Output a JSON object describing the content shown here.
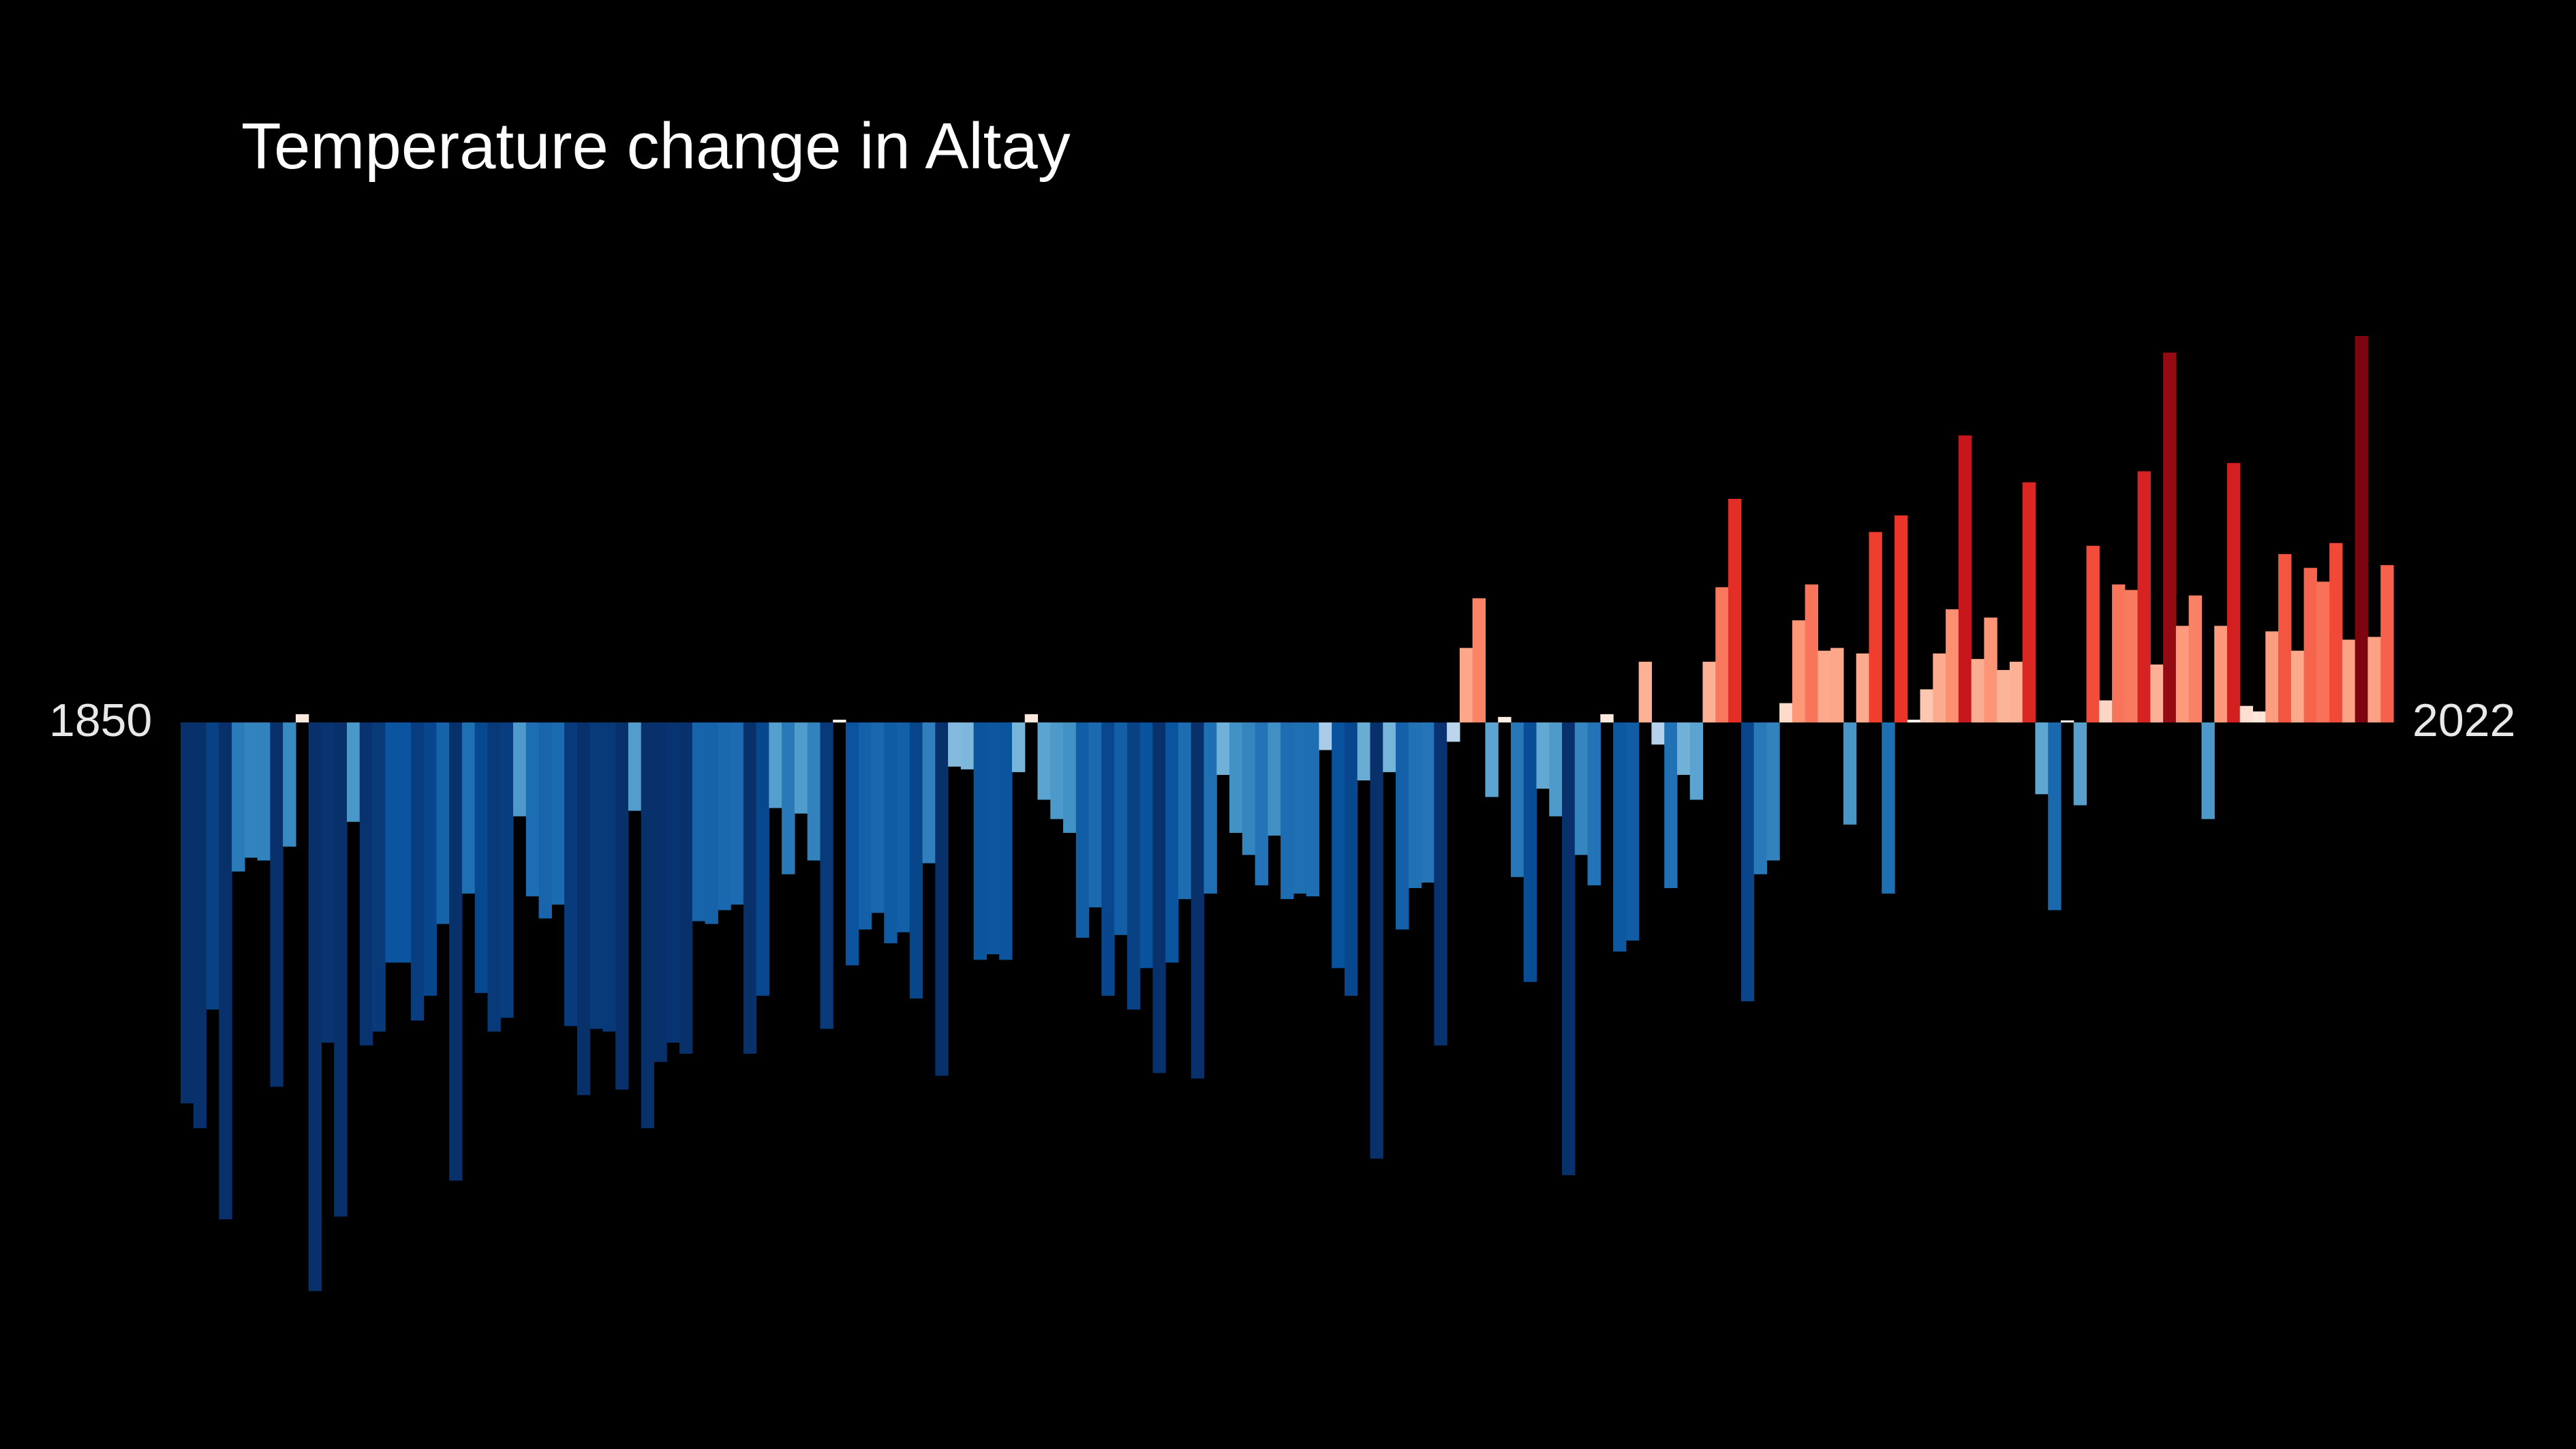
{
  "chart_data": {
    "type": "bar",
    "title": "Temperature change in Altay",
    "start_year": "1850",
    "end_year": "2022",
    "x": [
      1850,
      1851,
      1852,
      1853,
      1854,
      1855,
      1856,
      1857,
      1858,
      1859,
      1860,
      1861,
      1862,
      1863,
      1864,
      1865,
      1866,
      1867,
      1868,
      1869,
      1870,
      1871,
      1872,
      1873,
      1874,
      1875,
      1876,
      1877,
      1878,
      1879,
      1880,
      1881,
      1882,
      1883,
      1884,
      1885,
      1886,
      1887,
      1888,
      1889,
      1890,
      1891,
      1892,
      1893,
      1894,
      1895,
      1896,
      1897,
      1898,
      1899,
      1900,
      1901,
      1902,
      1903,
      1904,
      1905,
      1906,
      1907,
      1908,
      1909,
      1910,
      1911,
      1912,
      1913,
      1914,
      1915,
      1916,
      1917,
      1918,
      1919,
      1920,
      1921,
      1922,
      1923,
      1924,
      1925,
      1926,
      1927,
      1928,
      1929,
      1930,
      1931,
      1932,
      1933,
      1934,
      1935,
      1936,
      1937,
      1938,
      1939,
      1940,
      1941,
      1942,
      1943,
      1944,
      1945,
      1946,
      1947,
      1948,
      1949,
      1950,
      1951,
      1952,
      1953,
      1954,
      1955,
      1956,
      1957,
      1958,
      1959,
      1960,
      1961,
      1962,
      1963,
      1964,
      1965,
      1966,
      1967,
      1968,
      1969,
      1970,
      1971,
      1972,
      1973,
      1974,
      1975,
      1976,
      1977,
      1978,
      1979,
      1980,
      1981,
      1982,
      1983,
      1984,
      1985,
      1986,
      1987,
      1988,
      1989,
      1990,
      1991,
      1992,
      1993,
      1994,
      1995,
      1996,
      1997,
      1998,
      1999,
      2000,
      2001,
      2002,
      2003,
      2004,
      2005,
      2006,
      2007,
      2008,
      2009,
      2010,
      2011,
      2012,
      2013,
      2014,
      2015,
      2016,
      2017,
      2018,
      2019,
      2020,
      2021,
      2022
    ],
    "values": [
      -1.38,
      -1.47,
      -1.04,
      -1.8,
      -0.54,
      -0.49,
      -0.5,
      -1.32,
      -0.45,
      0.03,
      -2.06,
      -1.16,
      -1.79,
      -0.36,
      -1.17,
      -1.12,
      -0.87,
      -0.87,
      -1.08,
      -0.99,
      -0.73,
      -1.66,
      -0.62,
      -0.98,
      -1.12,
      -1.07,
      -0.34,
      -0.63,
      -0.71,
      -0.66,
      -1.1,
      -1.35,
      -1.11,
      -1.12,
      -1.33,
      -0.32,
      -1.47,
      -1.23,
      -1.16,
      -1.2,
      -0.72,
      -0.73,
      -0.68,
      -0.66,
      -1.2,
      -0.99,
      -0.31,
      -0.55,
      -0.33,
      -0.5,
      -1.11,
      0.01,
      -0.88,
      -0.75,
      -0.69,
      -0.8,
      -0.76,
      -1.0,
      -0.51,
      -1.28,
      -0.16,
      -0.17,
      -0.86,
      -0.84,
      -0.86,
      -0.18,
      0.03,
      -0.28,
      -0.35,
      -0.4,
      -0.78,
      -0.67,
      -0.99,
      -0.77,
      -1.04,
      -0.89,
      -1.27,
      -0.87,
      -0.64,
      -1.29,
      -0.62,
      -0.19,
      -0.4,
      -0.48,
      -0.59,
      -0.41,
      -0.64,
      -0.62,
      -0.63,
      -0.1,
      -0.89,
      -0.99,
      -0.21,
      -1.58,
      -0.18,
      -0.75,
      -0.6,
      -0.58,
      -1.17,
      -0.07,
      0.27,
      0.45,
      -0.27,
      0.02,
      -0.56,
      -0.94,
      -0.24,
      -0.34,
      -1.64,
      -0.48,
      -0.59,
      0.03,
      -0.83,
      -0.79,
      0.22,
      -0.08,
      -0.6,
      -0.19,
      -0.28,
      0.22,
      0.49,
      0.81,
      -1.01,
      -0.55,
      -0.5,
      0.07,
      0.37,
      0.5,
      0.26,
      0.27,
      -0.37,
      0.25,
      0.69,
      -0.62,
      0.75,
      0.01,
      0.12,
      0.25,
      0.41,
      1.04,
      0.23,
      0.38,
      0.19,
      0.22,
      0.87,
      -0.26,
      -0.68,
      -0.0,
      -0.3,
      0.64,
      0.08,
      0.5,
      0.48,
      0.91,
      0.21,
      1.34,
      0.35,
      0.46,
      -0.35,
      0.35,
      0.94,
      0.06,
      0.04,
      0.33,
      0.61,
      0.26,
      0.56,
      0.51,
      0.65,
      0.3,
      1.4,
      0.31,
      0.57
    ],
    "ylim": [
      -2.3,
      1.8
    ]
  }
}
